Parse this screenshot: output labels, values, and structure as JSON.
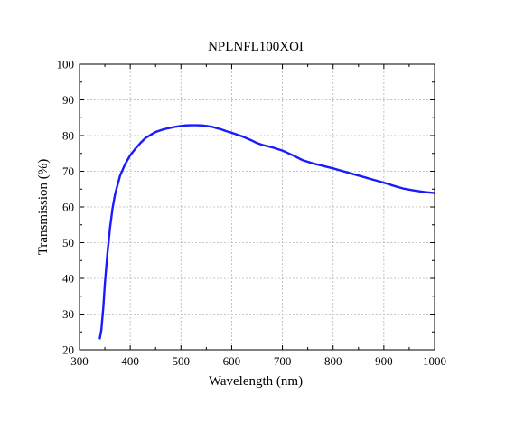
{
  "chart_data": {
    "type": "line",
    "title": "NPLNFL100XOI",
    "xlabel": "Wavelength (nm)",
    "ylabel": "Transmission (%)",
    "xlim": [
      300,
      1000
    ],
    "ylim": [
      20,
      100
    ],
    "xticks": [
      300,
      400,
      500,
      600,
      700,
      800,
      900,
      1000
    ],
    "yticks": [
      20,
      30,
      40,
      50,
      60,
      70,
      80,
      90,
      100
    ],
    "grid": true,
    "series": [
      {
        "color": "#1a1aff",
        "x": [
          340,
          343,
          347,
          350,
          355,
          360,
          365,
          370,
          380,
          390,
          400,
          410,
          420,
          430,
          440,
          450,
          460,
          470,
          480,
          490,
          500,
          510,
          520,
          530,
          540,
          550,
          560,
          570,
          580,
          590,
          600,
          620,
          640,
          650,
          660,
          680,
          700,
          720,
          740,
          760,
          780,
          800,
          820,
          840,
          860,
          880,
          900,
          920,
          940,
          960,
          980,
          1000
        ],
        "y": [
          23.2,
          25.5,
          32,
          38.5,
          47,
          54,
          59.5,
          63.5,
          68.8,
          72,
          74.5,
          76.3,
          77.9,
          79.3,
          80.2,
          81,
          81.5,
          81.9,
          82.2,
          82.5,
          82.7,
          82.85,
          82.9,
          82.9,
          82.85,
          82.7,
          82.5,
          82.1,
          81.7,
          81.2,
          80.8,
          79.8,
          78.6,
          77.9,
          77.4,
          76.7,
          75.8,
          74.5,
          73.1,
          72.2,
          71.5,
          70.8,
          70.0,
          69.2,
          68.4,
          67.6,
          66.8,
          65.9,
          65.1,
          64.6,
          64.2,
          63.9
        ]
      }
    ]
  }
}
